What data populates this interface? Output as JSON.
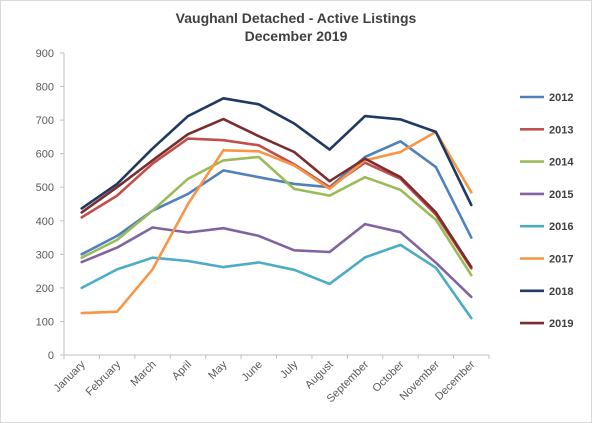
{
  "chart_data": {
    "type": "line",
    "title": "Vaughanl Detached - Active Listings",
    "subtitle": "December 2019",
    "xlabel": "",
    "ylabel": "",
    "ylim": [
      0,
      900
    ],
    "yticks": [
      0,
      100,
      200,
      300,
      400,
      500,
      600,
      700,
      800,
      900
    ],
    "grid": false,
    "legend": "right",
    "categories": [
      "January",
      "February",
      "March",
      "April",
      "May",
      "June",
      "July",
      "August",
      "September",
      "October",
      "November",
      "December"
    ],
    "series": [
      {
        "name": "2012",
        "color": "#4F81BD",
        "values": [
          300,
          355,
          430,
          480,
          550,
          530,
          510,
          500,
          590,
          637,
          560,
          350
        ]
      },
      {
        "name": "2013",
        "color": "#C0504D",
        "values": [
          410,
          475,
          570,
          645,
          640,
          625,
          568,
          500,
          573,
          525,
          418,
          258
        ]
      },
      {
        "name": "2014",
        "color": "#9BBB59",
        "values": [
          290,
          343,
          430,
          525,
          580,
          590,
          495,
          475,
          530,
          492,
          403,
          238
        ]
      },
      {
        "name": "2015",
        "color": "#8064A2",
        "values": [
          277,
          320,
          380,
          365,
          378,
          355,
          312,
          307,
          390,
          366,
          275,
          173
        ]
      },
      {
        "name": "2016",
        "color": "#4BACC6",
        "values": [
          200,
          255,
          290,
          280,
          262,
          276,
          254,
          212,
          291,
          328,
          260,
          110
        ]
      },
      {
        "name": "2017",
        "color": "#F79646",
        "values": [
          125,
          129,
          255,
          450,
          610,
          607,
          565,
          495,
          580,
          605,
          665,
          485
        ]
      },
      {
        "name": "2018",
        "color": "#1F3864",
        "values": [
          437,
          510,
          615,
          712,
          765,
          747,
          690,
          612,
          712,
          702,
          665,
          447
        ]
      },
      {
        "name": "2019",
        "color": "#7B2C2C",
        "values": [
          425,
          500,
          580,
          658,
          703,
          652,
          605,
          518,
          585,
          530,
          425,
          262
        ]
      }
    ]
  }
}
